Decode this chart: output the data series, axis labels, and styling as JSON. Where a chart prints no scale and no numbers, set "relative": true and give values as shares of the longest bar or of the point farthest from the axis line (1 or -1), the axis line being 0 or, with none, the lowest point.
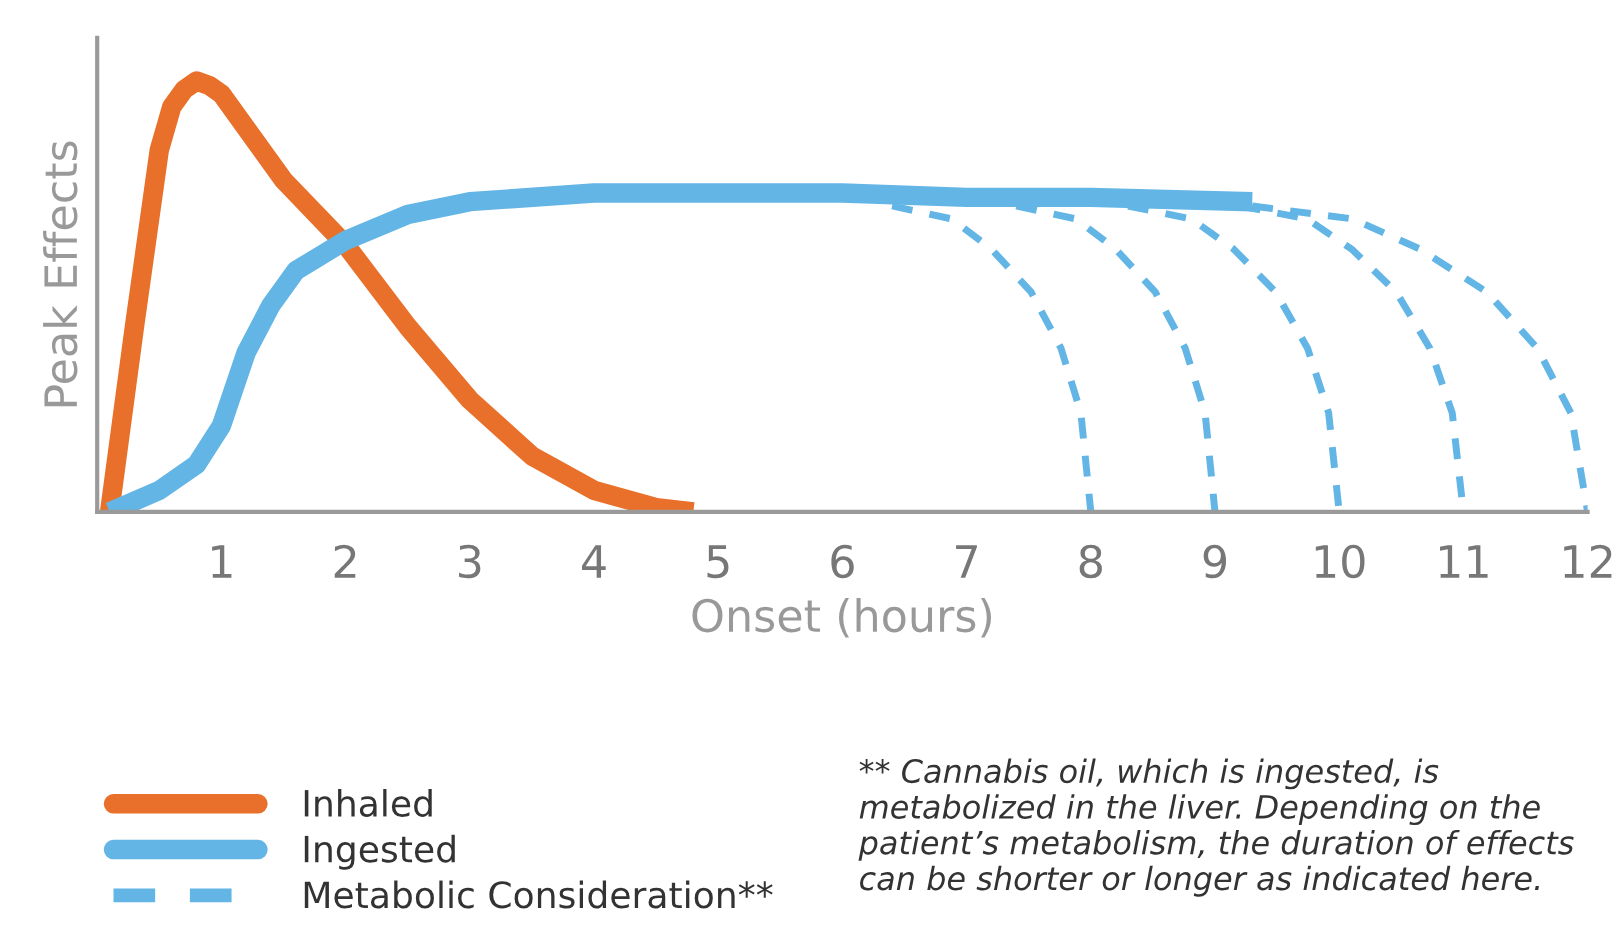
{
  "chart_data": {
    "type": "line",
    "relative": true,
    "xlabel": "Onset (hours)",
    "ylabel": "Peak Effects",
    "xlim": [
      0,
      12
    ],
    "xticks": [
      1,
      2,
      3,
      4,
      5,
      6,
      7,
      8,
      9,
      10,
      11,
      12
    ],
    "grid": false,
    "legend": "bottom left",
    "series": [
      {
        "name": "Inhaled",
        "color": "#e8702a",
        "x": [
          0.1,
          0.3,
          0.5,
          0.6,
          0.7,
          0.8,
          0.9,
          1.0,
          1.2,
          1.5,
          2.0,
          2.5,
          3.0,
          3.5,
          4.0,
          4.5,
          4.8
        ],
        "values": [
          0,
          0.43,
          0.84,
          0.94,
          0.98,
          1.0,
          0.99,
          0.97,
          0.89,
          0.77,
          0.62,
          0.43,
          0.26,
          0.13,
          0.05,
          0.01,
          0
        ]
      },
      {
        "name": "Ingested",
        "color": "#62b5e5",
        "x": [
          0.1,
          0.5,
          0.8,
          1.0,
          1.2,
          1.4,
          1.6,
          2.0,
          2.5,
          3.0,
          4.0,
          5.0,
          6.0,
          7.0,
          8.0,
          9.3
        ],
        "values": [
          0,
          0.05,
          0.11,
          0.2,
          0.37,
          0.48,
          0.56,
          0.63,
          0.69,
          0.72,
          0.74,
          0.74,
          0.74,
          0.73,
          0.73,
          0.72
        ]
      },
      {
        "name": "Metabolic Consideration**",
        "color": "#62b5e5",
        "line_style": "dashed",
        "x": [
          6.4,
          6.88,
          7.2,
          7.52,
          7.76,
          7.92,
          8
        ],
        "values": [
          0.71,
          0.68,
          0.61,
          0.51,
          0.38,
          0.23,
          0
        ]
      },
      {
        "color": "#62b5e5",
        "line_style": "dashed",
        "x": [
          7.4,
          7.88,
          8.2,
          8.52,
          8.76,
          8.92,
          9
        ],
        "values": [
          0.71,
          0.68,
          0.61,
          0.51,
          0.38,
          0.23,
          0
        ]
      },
      {
        "color": "#62b5e5",
        "line_style": "dashed",
        "x": [
          8.3,
          8.81,
          9.15,
          9.49,
          9.745,
          9.915,
          10
        ],
        "values": [
          0.71,
          0.68,
          0.61,
          0.51,
          0.38,
          0.23,
          0
        ]
      },
      {
        "color": "#62b5e5",
        "line_style": "dashed",
        "x": [
          9.2,
          9.74,
          10.1,
          10.46,
          10.73,
          10.91,
          11
        ],
        "values": [
          0.71,
          0.68,
          0.61,
          0.51,
          0.38,
          0.23,
          0
        ]
      },
      {
        "color": "#62b5e5",
        "line_style": "dashed",
        "x": [
          9.3,
          10.11,
          10.65,
          11.19,
          11.595,
          11.865,
          12
        ],
        "values": [
          0.71,
          0.68,
          0.61,
          0.51,
          0.38,
          0.23,
          0
        ]
      }
    ],
    "annotations": [
      "** Cannabis oil, which is ingested, is metabolized in the liver. Depending on the patient’s metabolism, the duration of effects can be shorter or longer as indicated here."
    ]
  }
}
